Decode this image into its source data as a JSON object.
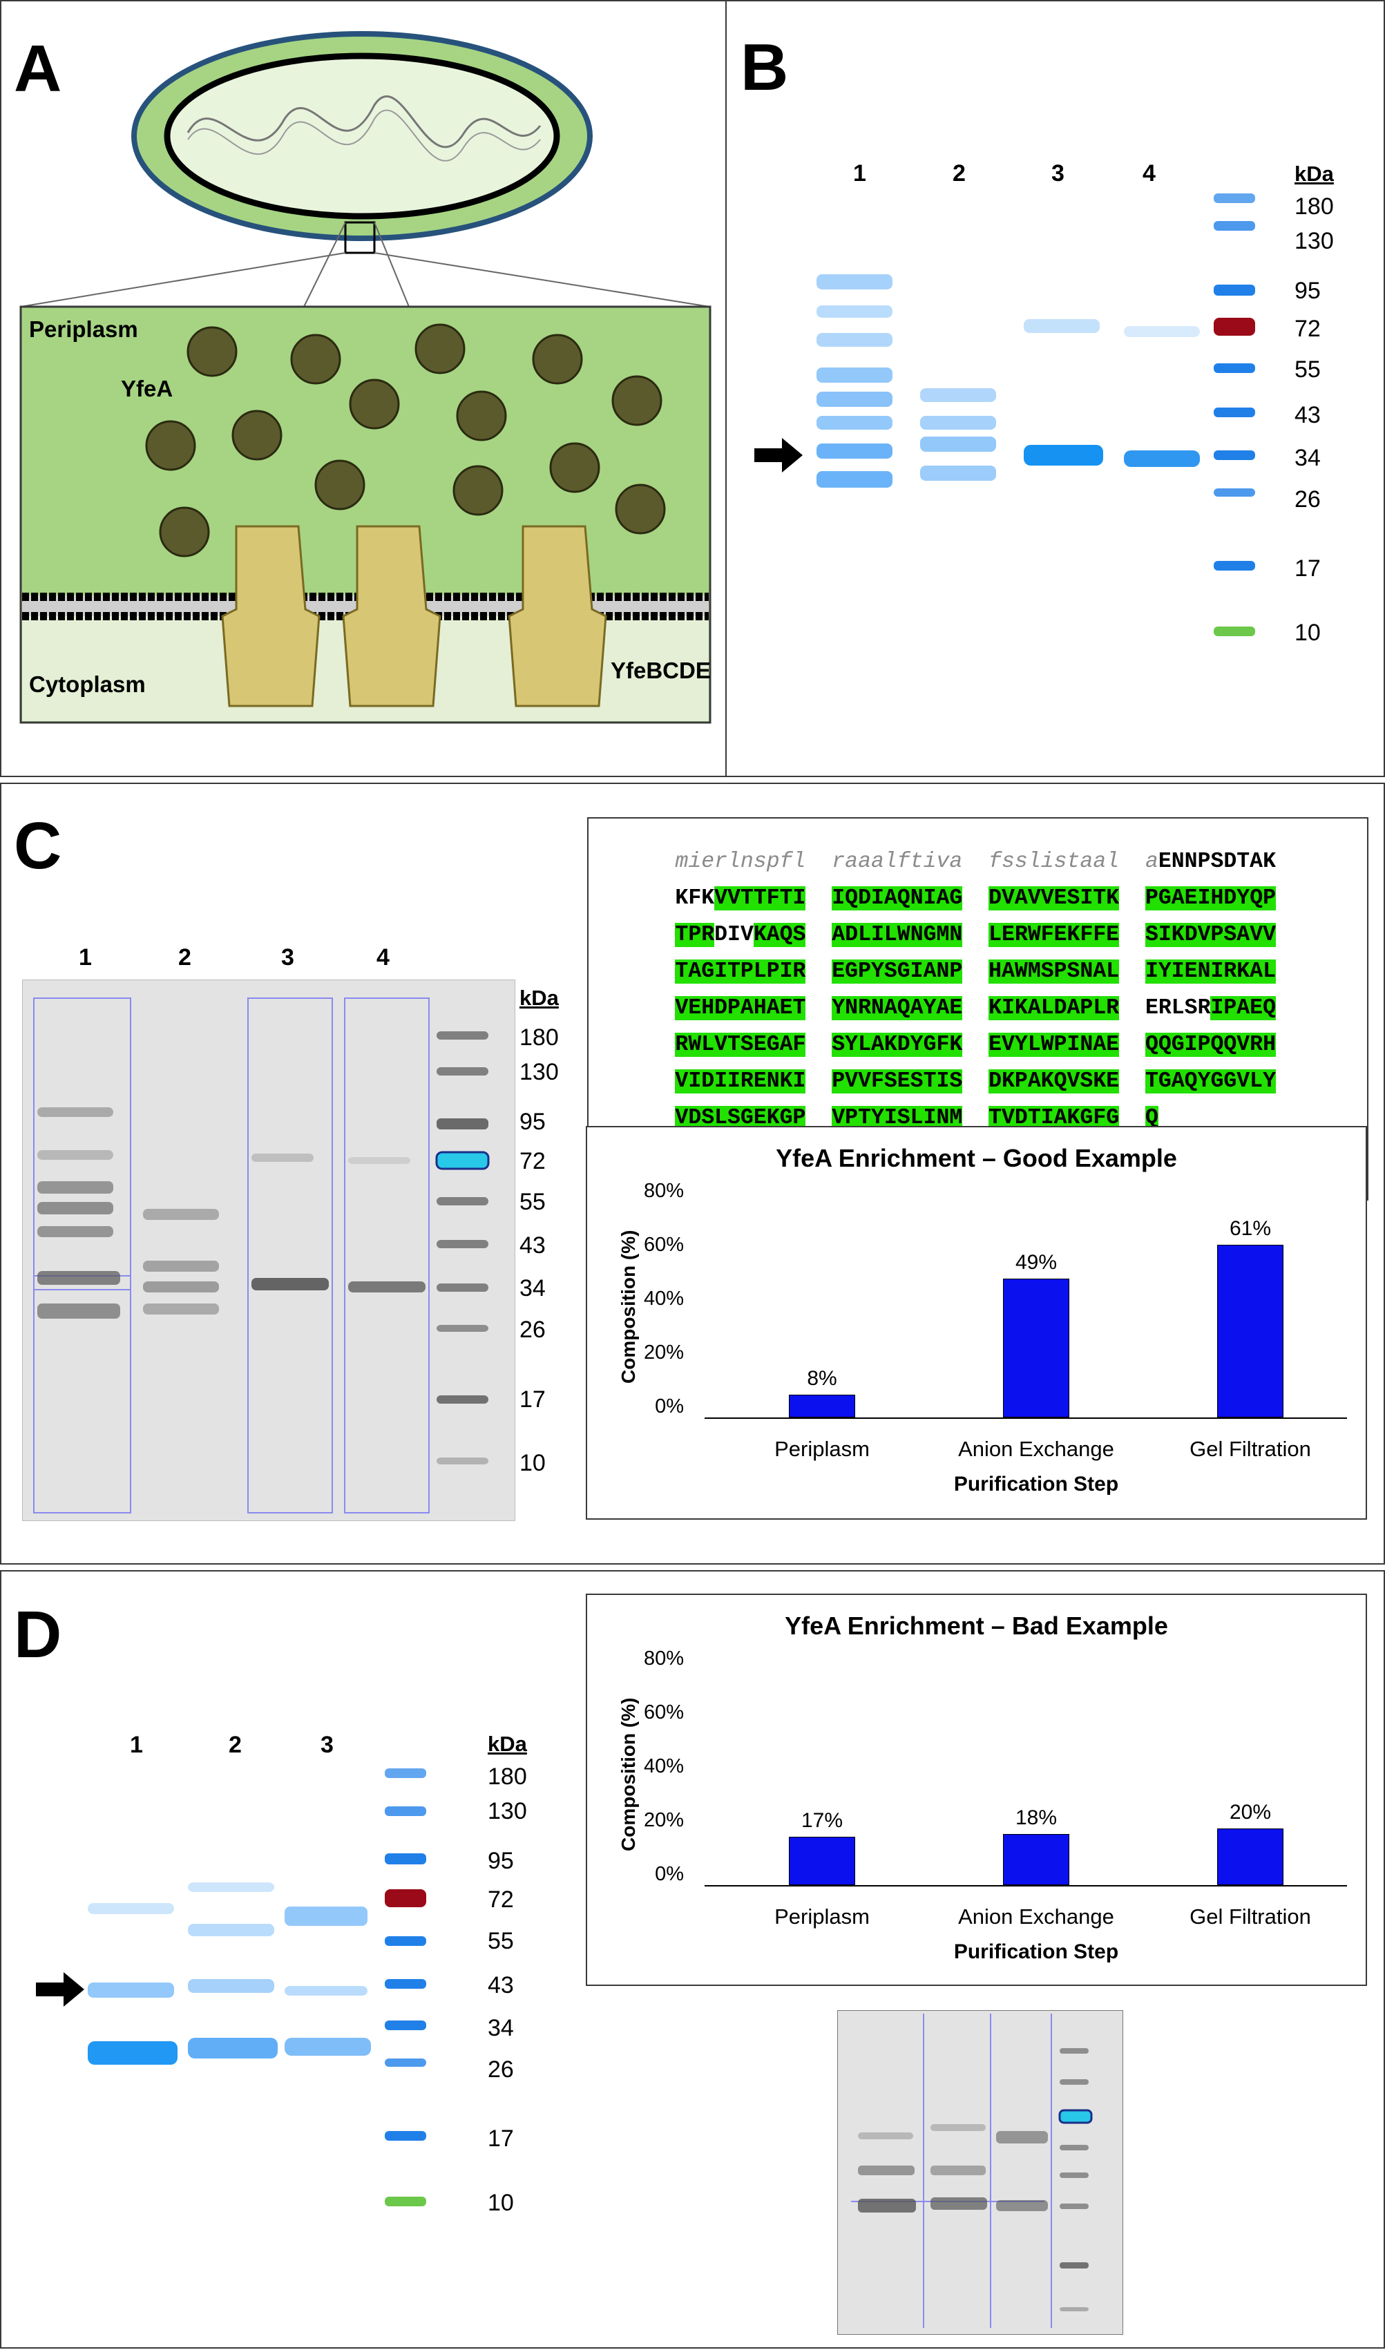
{
  "panels": {
    "a": {
      "label": "A",
      "periplasm": "Periplasm",
      "protein": "YfeA",
      "cytoplasm": "Cytoplasm",
      "transporter": "YfeBCDE"
    },
    "b": {
      "label": "B",
      "lanes": [
        "1",
        "2",
        "3",
        "4"
      ],
      "kda_title": "kDa",
      "markers": [
        "180",
        "130",
        "95",
        "72",
        "55",
        "43",
        "34",
        "26",
        "17",
        "10"
      ]
    },
    "c": {
      "label": "C",
      "lanes": [
        "1",
        "2",
        "3",
        "4"
      ],
      "kda_title": "kDa",
      "markers": [
        "180",
        "130",
        "95",
        "72",
        "55",
        "43",
        "34",
        "26",
        "17",
        "10"
      ],
      "sequence": {
        "signal": [
          "mierlnspfl",
          "raaalftiva",
          "fsslistaal",
          "a"
        ],
        "l1_tail": "ENNPSDTAK",
        "l2": [
          "KFK",
          "VVTTFTI",
          "IQDIAQNIAG",
          "DVAVVESITK",
          "PGAEIHDYQP"
        ],
        "l3": [
          "TPR",
          "DIV",
          "KAQS",
          "ADLILWNGMN",
          "LERWFEKFFE",
          "SIKDVPSAVV"
        ],
        "l4": [
          "TAGITPLPIR",
          "EGPYSGIANP",
          "HAWMSPSNAL",
          "IYIENIRKAL"
        ],
        "l5": [
          "VEHDPAHAET",
          "YNRNAQAYAE",
          "KIKALDAPLR",
          "ERLSR",
          "IPAEQ"
        ],
        "l6": [
          "RWLVTSEGAF",
          "SYLAKDYGFK",
          "EVYLWPINAE",
          "QQGIPQQVRH"
        ],
        "l7": [
          "VIDIIRENKI",
          "PVVFSESTIS",
          "DKPAKQVSKE",
          "TGAQYGGVLY"
        ],
        "l8": [
          "VDSLSGEKGP",
          "VPTYISLINM",
          "TVDTIAKGFG",
          "Q"
        ]
      }
    },
    "d": {
      "label": "D",
      "lanes": [
        "1",
        "2",
        "3"
      ],
      "kda_title": "kDa",
      "markers": [
        "180",
        "130",
        "95",
        "72",
        "55",
        "43",
        "34",
        "26",
        "17",
        "10"
      ]
    }
  },
  "chart_data": [
    {
      "type": "bar",
      "title": "YfeA Enrichment – Good Example",
      "categories": [
        "Periplasm",
        "Anion Exchange",
        "Gel Filtration"
      ],
      "values": [
        8,
        49,
        61
      ],
      "value_labels": [
        "8%",
        "49%",
        "61%"
      ],
      "xlabel": "Purification Step",
      "ylabel": "Composition (%)",
      "yticks": [
        "0%",
        "20%",
        "40%",
        "60%",
        "80%"
      ],
      "ylim": [
        0,
        80
      ]
    },
    {
      "type": "bar",
      "title": "YfeA Enrichment – Bad Example",
      "categories": [
        "Periplasm",
        "Anion Exchange",
        "Gel Filtration"
      ],
      "values": [
        17,
        18,
        20
      ],
      "value_labels": [
        "17%",
        "18%",
        "20%"
      ],
      "xlabel": "Purification Step",
      "ylabel": "Composition (%)",
      "yticks": [
        "0%",
        "20%",
        "40%",
        "60%",
        "80%"
      ],
      "ylim": [
        0,
        80
      ]
    }
  ],
  "colors": {
    "chart_bar": "#0a10ee",
    "highlight": "#22e000",
    "gel_blue": "#1a8cf0"
  }
}
